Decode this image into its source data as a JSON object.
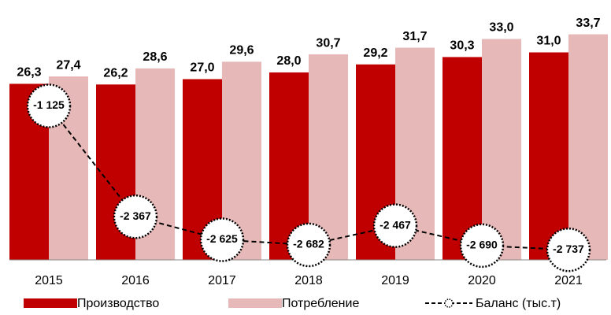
{
  "chart_data": {
    "type": "bar_line",
    "categories": [
      "2015",
      "2016",
      "2017",
      "2018",
      "2019",
      "2020",
      "2021"
    ],
    "series": [
      {
        "name": "Производство",
        "color": "#c00000",
        "values": [
          26.3,
          26.2,
          27.0,
          28.0,
          29.2,
          30.3,
          31.0
        ],
        "value_labels": [
          "26,3",
          "26,2",
          "27,0",
          "28,0",
          "29,2",
          "30,3",
          "31,0"
        ]
      },
      {
        "name": "Потребление",
        "color": "#e6b8b7",
        "values": [
          27.4,
          28.6,
          29.6,
          30.7,
          31.7,
          33.0,
          33.7
        ],
        "value_labels": [
          "27,4",
          "28,6",
          "29,6",
          "30,7",
          "31,7",
          "33,0",
          "33,7"
        ]
      },
      {
        "name": "Баланс (тыс.т)",
        "color": "#000000",
        "axis": "y2",
        "type": "line",
        "values": [
          -1125,
          -2367,
          -2625,
          -2682,
          -2467,
          -2690,
          -2737
        ],
        "value_labels": [
          "-1 125",
          "-2 367",
          "-2 625",
          "-2 682",
          "-2 467",
          "-2 690",
          "-2 737"
        ]
      }
    ],
    "ylim": [
      0,
      38
    ],
    "y2lim": [
      -2850,
      0
    ],
    "legend": "bottom"
  }
}
